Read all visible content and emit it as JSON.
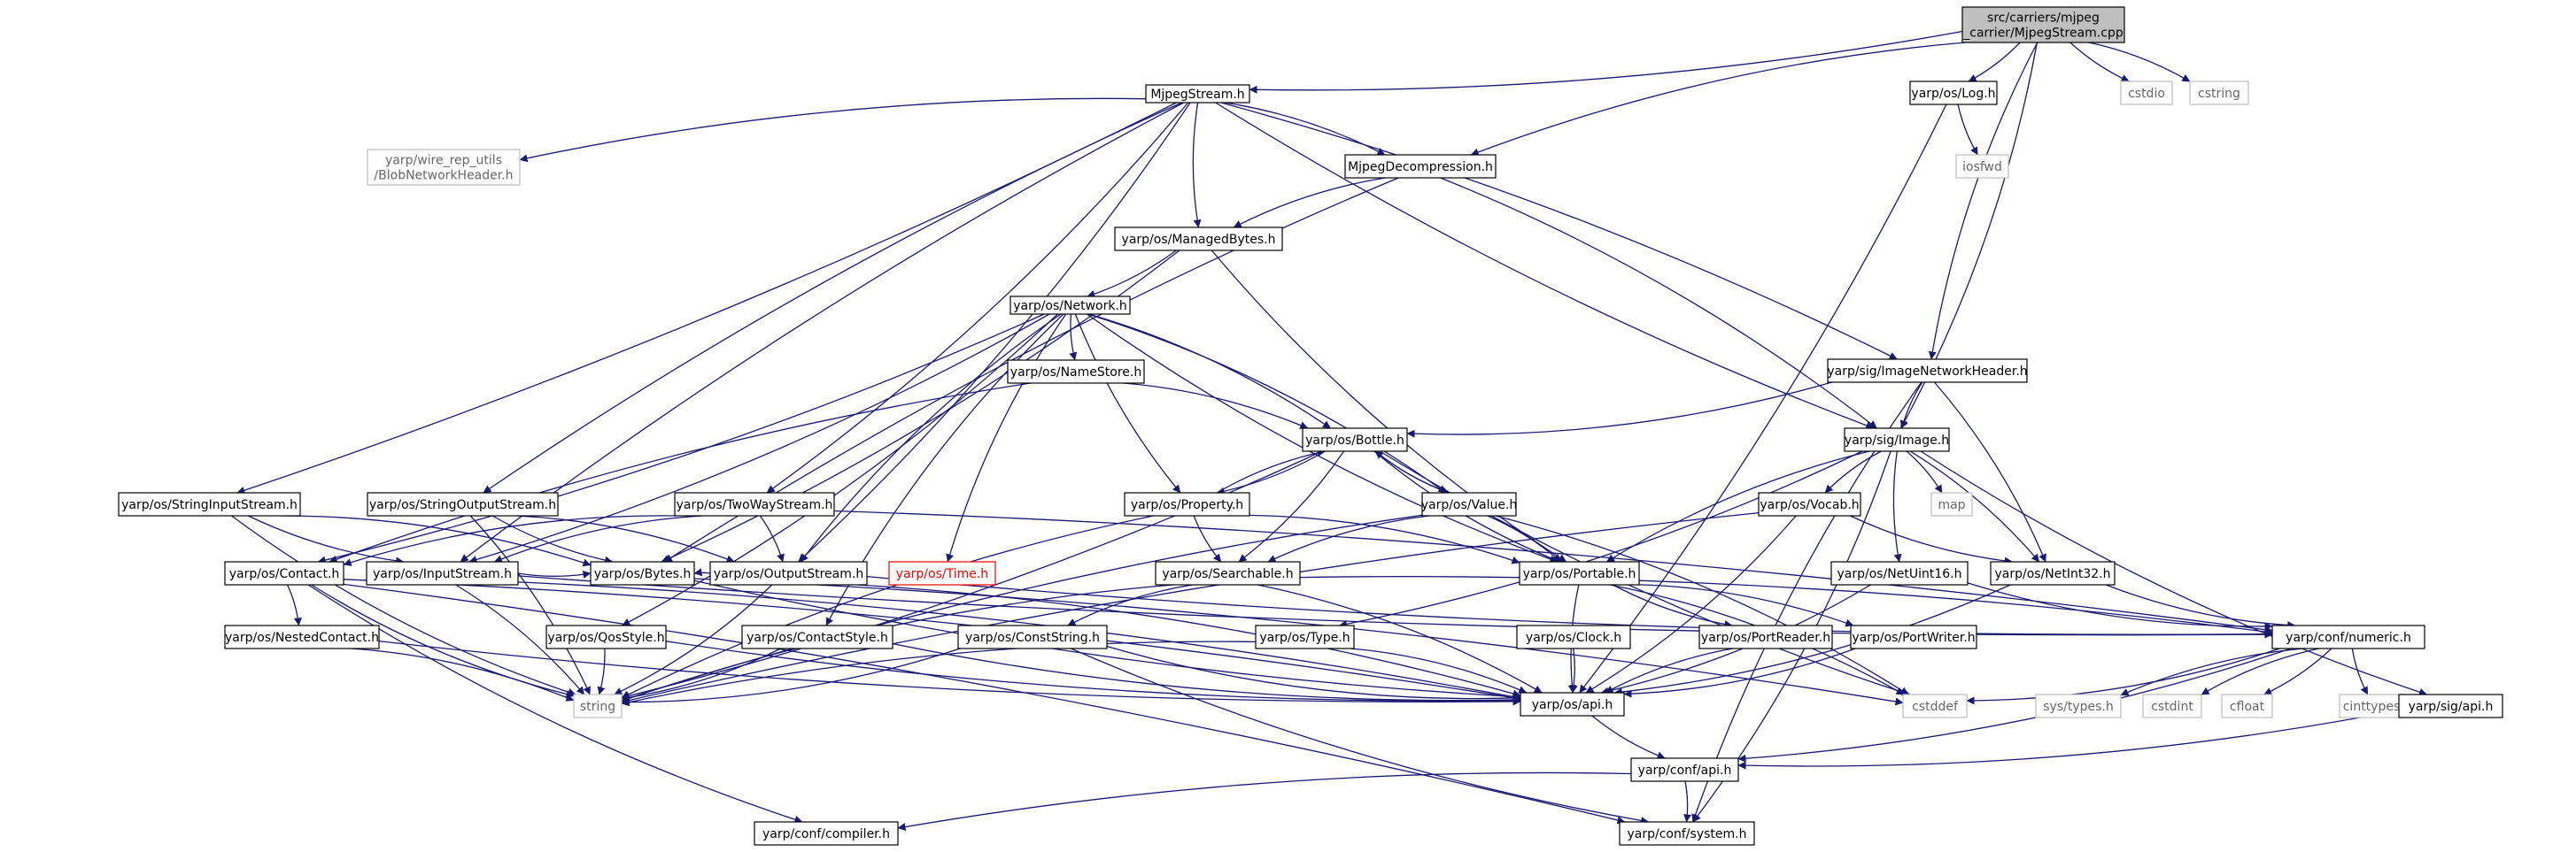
{
  "graph": {
    "nodes": [
      {
        "id": "root",
        "label": [
          "src/carriers/mjpeg",
          "_carrier/MjpegStream.cpp"
        ],
        "kind": "root"
      },
      {
        "id": "mjpegstream",
        "label": [
          "MjpegStream.h"
        ],
        "kind": "normal"
      },
      {
        "id": "log",
        "label": [
          "yarp/os/Log.h"
        ],
        "kind": "normal"
      },
      {
        "id": "cstdio",
        "label": [
          "cstdio"
        ],
        "kind": "system"
      },
      {
        "id": "cstring",
        "label": [
          "cstring"
        ],
        "kind": "system"
      },
      {
        "id": "blobnet",
        "label": [
          "yarp/wire_rep_utils",
          "/BlobNetworkHeader.h"
        ],
        "kind": "system"
      },
      {
        "id": "mjpegdecomp",
        "label": [
          "MjpegDecompression.h"
        ],
        "kind": "normal"
      },
      {
        "id": "iosfwd",
        "label": [
          "iosfwd"
        ],
        "kind": "system"
      },
      {
        "id": "managedbytes",
        "label": [
          "yarp/os/ManagedBytes.h"
        ],
        "kind": "normal"
      },
      {
        "id": "network",
        "label": [
          "yarp/os/Network.h"
        ],
        "kind": "normal"
      },
      {
        "id": "namestore",
        "label": [
          "yarp/os/NameStore.h"
        ],
        "kind": "normal"
      },
      {
        "id": "imgnethdr",
        "label": [
          "yarp/sig/ImageNetworkHeader.h"
        ],
        "kind": "normal"
      },
      {
        "id": "bottle",
        "label": [
          "yarp/os/Bottle.h"
        ],
        "kind": "normal"
      },
      {
        "id": "sigimage",
        "label": [
          "yarp/sig/Image.h"
        ],
        "kind": "normal"
      },
      {
        "id": "strinstream",
        "label": [
          "yarp/os/StringInputStream.h"
        ],
        "kind": "normal"
      },
      {
        "id": "stroutstream",
        "label": [
          "yarp/os/StringOutputStream.h"
        ],
        "kind": "normal"
      },
      {
        "id": "twoway",
        "label": [
          "yarp/os/TwoWayStream.h"
        ],
        "kind": "normal"
      },
      {
        "id": "property",
        "label": [
          "yarp/os/Property.h"
        ],
        "kind": "normal"
      },
      {
        "id": "value",
        "label": [
          "yarp/os/Value.h"
        ],
        "kind": "normal"
      },
      {
        "id": "map",
        "label": [
          "map"
        ],
        "kind": "system"
      },
      {
        "id": "vocab",
        "label": [
          "yarp/os/Vocab.h"
        ],
        "kind": "normal"
      },
      {
        "id": "contact",
        "label": [
          "yarp/os/Contact.h"
        ],
        "kind": "normal"
      },
      {
        "id": "inputstream",
        "label": [
          "yarp/os/InputStream.h"
        ],
        "kind": "normal"
      },
      {
        "id": "bytes",
        "label": [
          "yarp/os/Bytes.h"
        ],
        "kind": "normal"
      },
      {
        "id": "outputstream",
        "label": [
          "yarp/os/OutputStream.h"
        ],
        "kind": "normal"
      },
      {
        "id": "time",
        "label": [
          "yarp/os/Time.h"
        ],
        "kind": "missing"
      },
      {
        "id": "searchable",
        "label": [
          "yarp/os/Searchable.h"
        ],
        "kind": "normal"
      },
      {
        "id": "portable",
        "label": [
          "yarp/os/Portable.h"
        ],
        "kind": "normal"
      },
      {
        "id": "netuint16",
        "label": [
          "yarp/os/NetUint16.h"
        ],
        "kind": "normal"
      },
      {
        "id": "netint32",
        "label": [
          "yarp/os/NetInt32.h"
        ],
        "kind": "normal"
      },
      {
        "id": "nestedcontact",
        "label": [
          "yarp/os/NestedContact.h"
        ],
        "kind": "normal"
      },
      {
        "id": "qosstyle",
        "label": [
          "yarp/os/QosStyle.h"
        ],
        "kind": "normal"
      },
      {
        "id": "contactstyle",
        "label": [
          "yarp/os/ContactStyle.h"
        ],
        "kind": "normal"
      },
      {
        "id": "conststring",
        "label": [
          "yarp/os/ConstString.h"
        ],
        "kind": "normal"
      },
      {
        "id": "type",
        "label": [
          "yarp/os/Type.h"
        ],
        "kind": "normal"
      },
      {
        "id": "clock",
        "label": [
          "yarp/os/Clock.h"
        ],
        "kind": "normal"
      },
      {
        "id": "portreader",
        "label": [
          "yarp/os/PortReader.h"
        ],
        "kind": "normal"
      },
      {
        "id": "portwriter",
        "label": [
          "yarp/os/PortWriter.h"
        ],
        "kind": "normal"
      },
      {
        "id": "numeric",
        "label": [
          "yarp/conf/numeric.h"
        ],
        "kind": "normal"
      },
      {
        "id": "string",
        "label": [
          "string"
        ],
        "kind": "system"
      },
      {
        "id": "osapi",
        "label": [
          "yarp/os/api.h"
        ],
        "kind": "normal"
      },
      {
        "id": "cstddef",
        "label": [
          "cstddef"
        ],
        "kind": "system"
      },
      {
        "id": "systypes",
        "label": [
          "sys/types.h"
        ],
        "kind": "system"
      },
      {
        "id": "cstdint",
        "label": [
          "cstdint"
        ],
        "kind": "system"
      },
      {
        "id": "cfloat",
        "label": [
          "cfloat"
        ],
        "kind": "system"
      },
      {
        "id": "cinttypes",
        "label": [
          "cinttypes"
        ],
        "kind": "system"
      },
      {
        "id": "sigapi",
        "label": [
          "yarp/sig/api.h"
        ],
        "kind": "normal"
      },
      {
        "id": "confapi",
        "label": [
          "yarp/conf/api.h"
        ],
        "kind": "normal"
      },
      {
        "id": "compiler",
        "label": [
          "yarp/conf/compiler.h"
        ],
        "kind": "normal"
      },
      {
        "id": "system",
        "label": [
          "yarp/conf/system.h"
        ],
        "kind": "normal"
      }
    ],
    "edges": [
      [
        "root",
        "mjpegstream"
      ],
      [
        "root",
        "mjpegdecomp"
      ],
      [
        "root",
        "log"
      ],
      [
        "root",
        "cstdio"
      ],
      [
        "root",
        "cstring"
      ],
      [
        "root",
        "imgnethdr"
      ],
      [
        "root",
        "sigimage"
      ],
      [
        "mjpegstream",
        "blobnet"
      ],
      [
        "mjpegstream",
        "mjpegdecomp"
      ],
      [
        "mjpegstream",
        "managedbytes"
      ],
      [
        "mjpegstream",
        "imgnethdr"
      ],
      [
        "mjpegstream",
        "sigimage"
      ],
      [
        "mjpegstream",
        "strinstream"
      ],
      [
        "mjpegstream",
        "stroutstream"
      ],
      [
        "mjpegstream",
        "twoway"
      ],
      [
        "mjpegstream",
        "inputstream"
      ],
      [
        "mjpegstream",
        "outputstream"
      ],
      [
        "log",
        "iosfwd"
      ],
      [
        "log",
        "osapi"
      ],
      [
        "mjpegdecomp",
        "managedbytes"
      ],
      [
        "mjpegdecomp",
        "sigimage"
      ],
      [
        "mjpegdecomp",
        "bytes"
      ],
      [
        "managedbytes",
        "network"
      ],
      [
        "managedbytes",
        "portable"
      ],
      [
        "managedbytes",
        "bytes"
      ],
      [
        "network",
        "namestore"
      ],
      [
        "network",
        "bottle"
      ],
      [
        "network",
        "property"
      ],
      [
        "network",
        "value"
      ],
      [
        "network",
        "portable"
      ],
      [
        "network",
        "contact"
      ],
      [
        "network",
        "time"
      ],
      [
        "network",
        "inputstream"
      ],
      [
        "network",
        "outputstream"
      ],
      [
        "network",
        "qosstyle"
      ],
      [
        "network",
        "contactstyle"
      ],
      [
        "namestore",
        "bottle"
      ],
      [
        "namestore",
        "contact"
      ],
      [
        "imgnethdr",
        "bottle"
      ],
      [
        "imgnethdr",
        "sigimage"
      ],
      [
        "imgnethdr",
        "netint32"
      ],
      [
        "imgnethdr",
        "system"
      ],
      [
        "bottle",
        "property"
      ],
      [
        "bottle",
        "value"
      ],
      [
        "bottle",
        "searchable"
      ],
      [
        "bottle",
        "portable"
      ],
      [
        "bottle",
        "string"
      ],
      [
        "bottle",
        "cstddef"
      ],
      [
        "property",
        "bottle"
      ],
      [
        "property",
        "searchable"
      ],
      [
        "property",
        "portable"
      ],
      [
        "property",
        "string"
      ],
      [
        "value",
        "bottle"
      ],
      [
        "value",
        "searchable"
      ],
      [
        "value",
        "portable"
      ],
      [
        "value",
        "string"
      ],
      [
        "value",
        "cstddef"
      ],
      [
        "sigimage",
        "vocab"
      ],
      [
        "sigimage",
        "map"
      ],
      [
        "sigimage",
        "netuint16"
      ],
      [
        "sigimage",
        "netint32"
      ],
      [
        "sigimage",
        "portable"
      ],
      [
        "sigimage",
        "type"
      ],
      [
        "sigimage",
        "sigapi"
      ],
      [
        "sigimage",
        "system"
      ],
      [
        "strinstream",
        "inputstream"
      ],
      [
        "strinstream",
        "bytes"
      ],
      [
        "strinstream",
        "string"
      ],
      [
        "stroutstream",
        "outputstream"
      ],
      [
        "stroutstream",
        "bytes"
      ],
      [
        "stroutstream",
        "string"
      ],
      [
        "twoway",
        "inputstream"
      ],
      [
        "twoway",
        "outputstream"
      ],
      [
        "twoway",
        "contact"
      ],
      [
        "twoway",
        "numeric"
      ],
      [
        "vocab",
        "netint32"
      ],
      [
        "vocab",
        "osapi"
      ],
      [
        "vocab",
        "string"
      ],
      [
        "contact",
        "nestedcontact"
      ],
      [
        "contact",
        "string"
      ],
      [
        "contact",
        "osapi"
      ],
      [
        "contact",
        "compiler"
      ],
      [
        "contact",
        "system"
      ],
      [
        "inputstream",
        "bytes"
      ],
      [
        "inputstream",
        "osapi"
      ],
      [
        "inputstream",
        "numeric"
      ],
      [
        "inputstream",
        "string"
      ],
      [
        "bytes",
        "osapi"
      ],
      [
        "bytes",
        "cstddef"
      ],
      [
        "outputstream",
        "bytes"
      ],
      [
        "outputstream",
        "osapi"
      ],
      [
        "outputstream",
        "numeric"
      ],
      [
        "outputstream",
        "string"
      ],
      [
        "searchable",
        "conststring"
      ],
      [
        "searchable",
        "osapi"
      ],
      [
        "searchable",
        "string"
      ],
      [
        "searchable",
        "numeric"
      ],
      [
        "portable",
        "portreader"
      ],
      [
        "portable",
        "portwriter"
      ],
      [
        "portable",
        "osapi"
      ],
      [
        "portable",
        "cstddef"
      ],
      [
        "netuint16",
        "numeric"
      ],
      [
        "netuint16",
        "osapi"
      ],
      [
        "netint32",
        "numeric"
      ],
      [
        "netint32",
        "osapi"
      ],
      [
        "nestedcontact",
        "osapi"
      ],
      [
        "nestedcontact",
        "string"
      ],
      [
        "qosstyle",
        "osapi"
      ],
      [
        "qosstyle",
        "string"
      ],
      [
        "contactstyle",
        "osapi"
      ],
      [
        "contactstyle",
        "string"
      ],
      [
        "conststring",
        "osapi"
      ],
      [
        "conststring",
        "string"
      ],
      [
        "conststring",
        "system"
      ],
      [
        "type",
        "osapi"
      ],
      [
        "type",
        "string"
      ],
      [
        "clock",
        "osapi"
      ],
      [
        "portreader",
        "osapi"
      ],
      [
        "portwriter",
        "osapi"
      ],
      [
        "numeric",
        "systypes"
      ],
      [
        "numeric",
        "cstddef"
      ],
      [
        "numeric",
        "cstdint"
      ],
      [
        "numeric",
        "cfloat"
      ],
      [
        "numeric",
        "cinttypes"
      ],
      [
        "numeric",
        "confapi"
      ],
      [
        "osapi",
        "confapi"
      ],
      [
        "sigapi",
        "confapi"
      ],
      [
        "confapi",
        "compiler"
      ],
      [
        "confapi",
        "system"
      ]
    ]
  }
}
